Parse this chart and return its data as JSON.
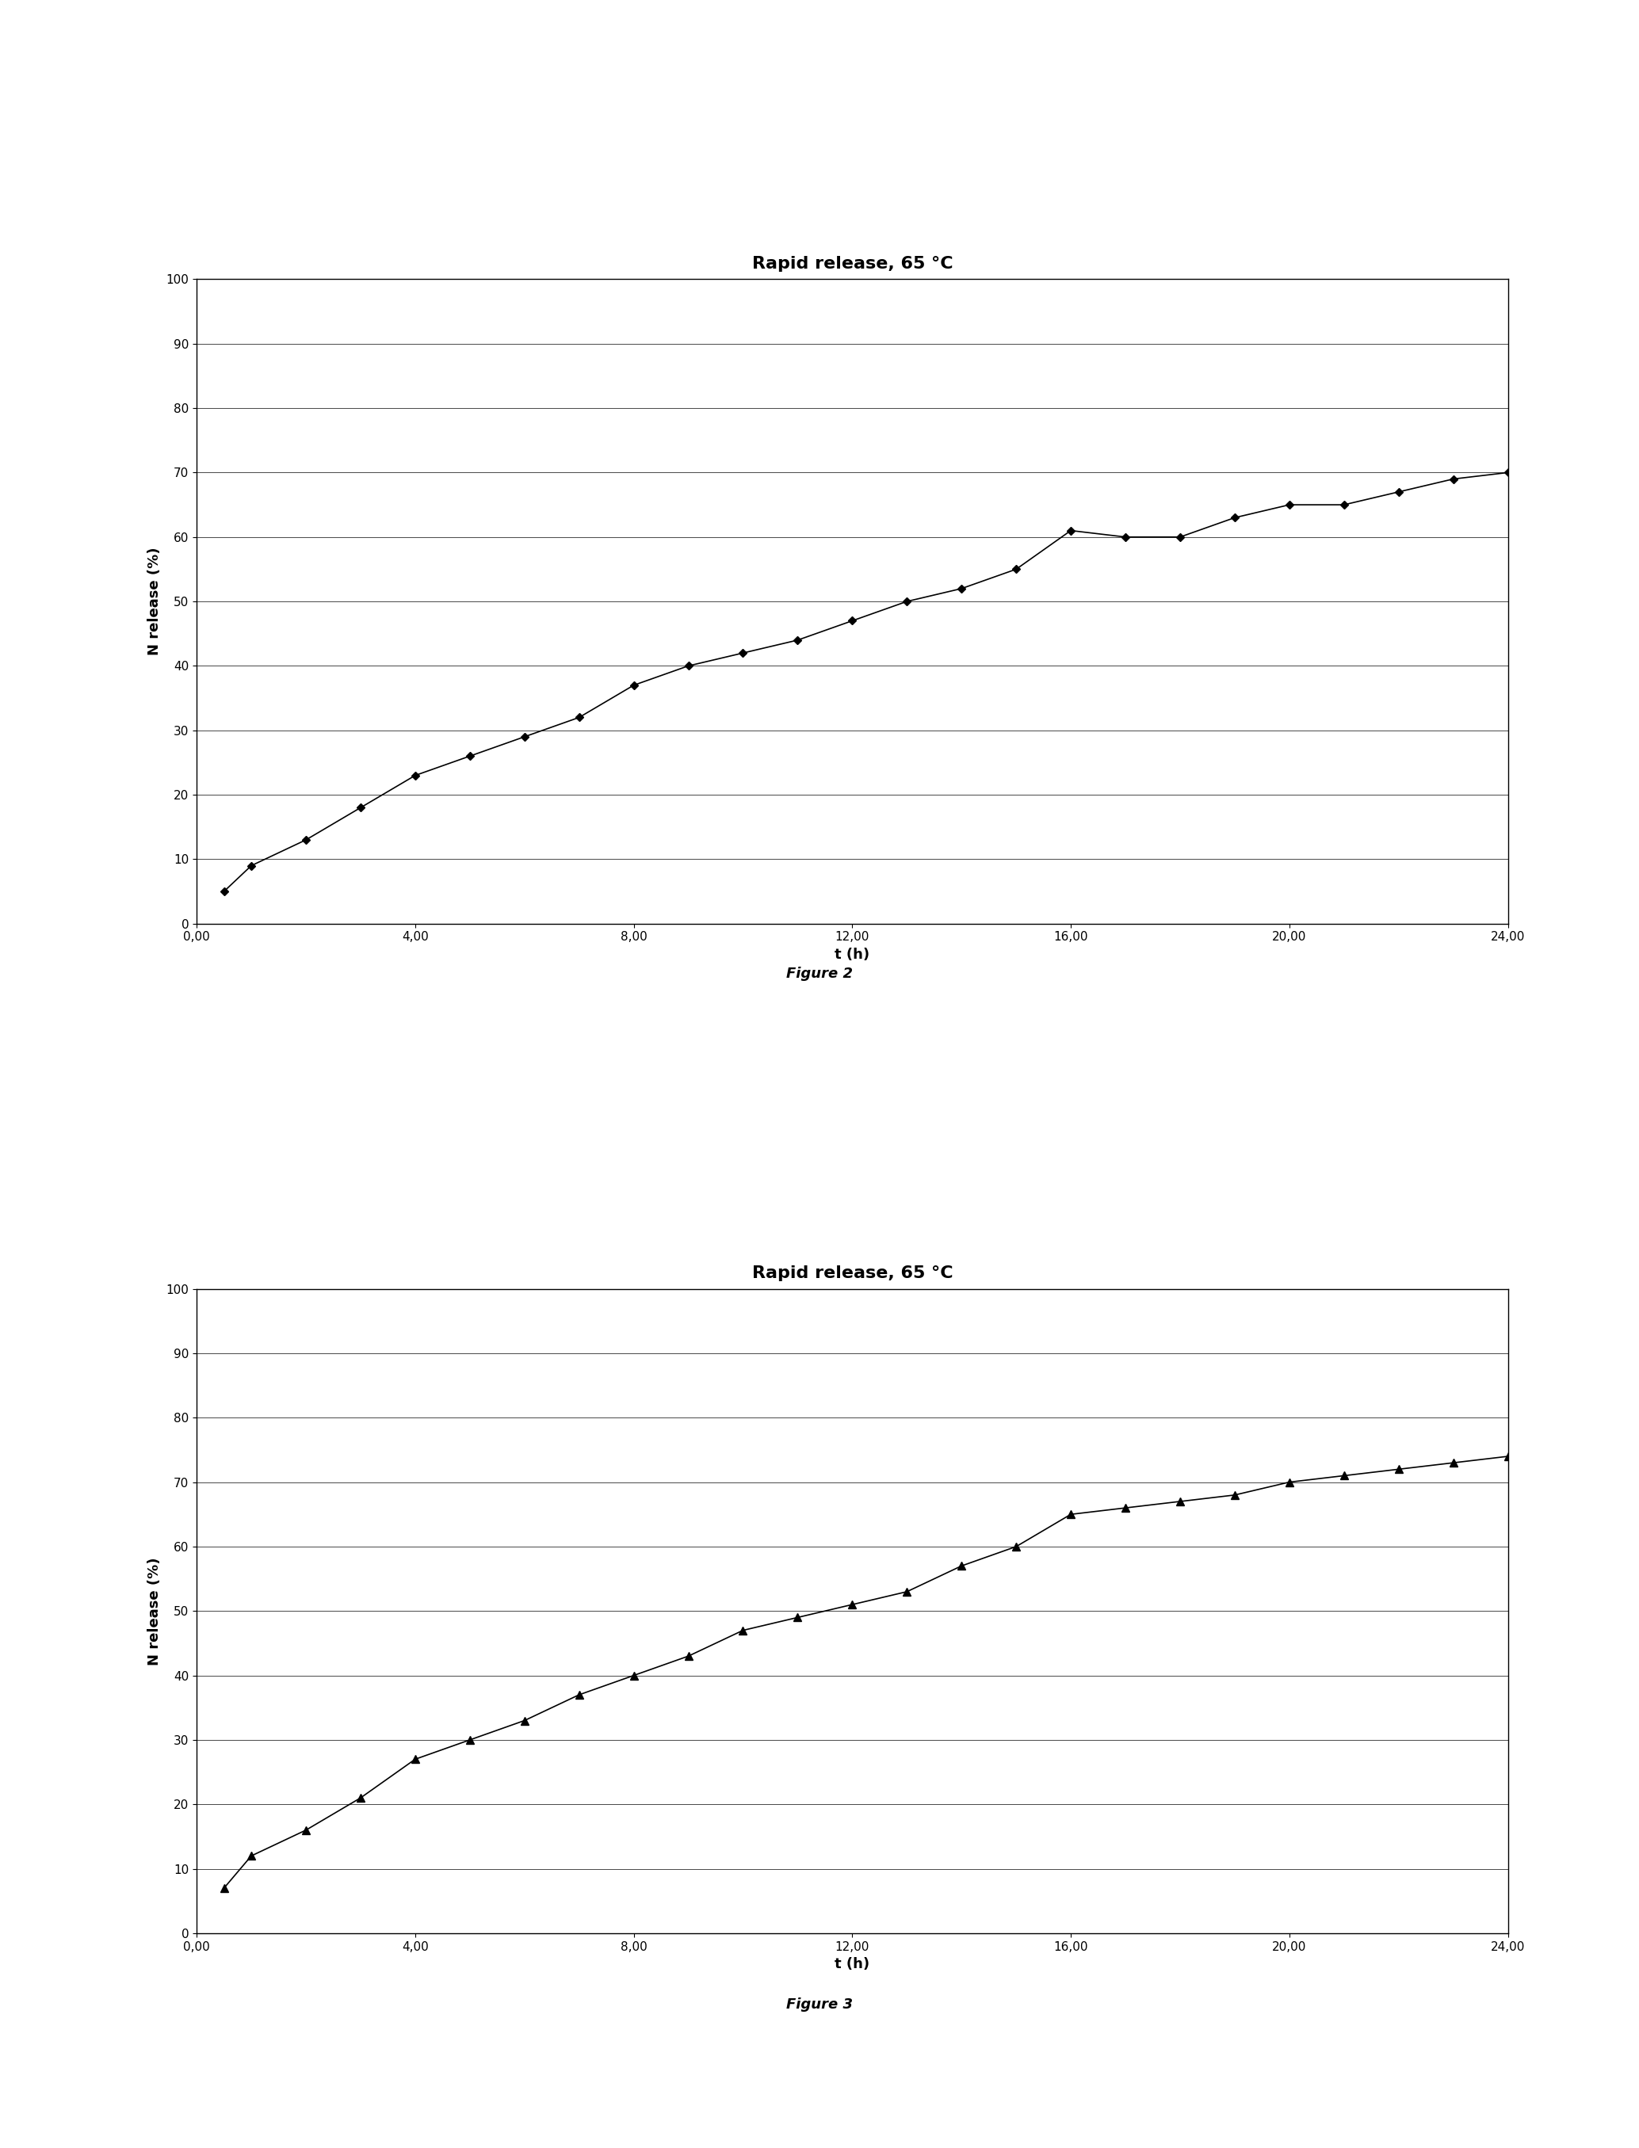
{
  "fig2": {
    "title": "Rapid release, 65 °C",
    "xlabel": "t (h)",
    "ylabel": "N release (%)",
    "x": [
      0.5,
      1,
      2,
      3,
      4,
      5,
      6,
      7,
      8,
      9,
      10,
      11,
      12,
      13,
      14,
      15,
      16,
      17,
      18,
      19,
      20,
      21,
      22,
      23,
      24
    ],
    "y": [
      5,
      9,
      13,
      18,
      23,
      26,
      29,
      32,
      37,
      40,
      42,
      44,
      47,
      50,
      52,
      55,
      61,
      60,
      60,
      63,
      65,
      65,
      67,
      69,
      70
    ],
    "marker": "D",
    "markersize": 5,
    "xlim": [
      0,
      24
    ],
    "ylim": [
      0,
      100
    ],
    "xticks": [
      0,
      4,
      8,
      12,
      16,
      20,
      24
    ],
    "xticklabels": [
      "0,00",
      "4,00",
      "8,00",
      "12,00",
      "16,00",
      "20,00",
      "24,00"
    ],
    "yticks": [
      0,
      10,
      20,
      30,
      40,
      50,
      60,
      70,
      80,
      90,
      100
    ],
    "figure_label": "Figure 2"
  },
  "fig3": {
    "title": "Rapid release, 65 °C",
    "xlabel": "t (h)",
    "ylabel": "N release (%)",
    "x": [
      0.5,
      1,
      2,
      3,
      4,
      5,
      6,
      7,
      8,
      9,
      10,
      11,
      12,
      13,
      14,
      15,
      16,
      17,
      18,
      19,
      20,
      21,
      22,
      23,
      24
    ],
    "y": [
      7,
      12,
      16,
      21,
      27,
      30,
      33,
      37,
      40,
      43,
      47,
      49,
      51,
      53,
      57,
      60,
      65,
      66,
      67,
      68,
      70,
      71,
      72,
      73,
      74
    ],
    "marker": "^",
    "markersize": 7,
    "xlim": [
      0,
      24
    ],
    "ylim": [
      0,
      100
    ],
    "xticks": [
      0,
      4,
      8,
      12,
      16,
      20,
      24
    ],
    "xticklabels": [
      "0,00",
      "4,00",
      "8,00",
      "12,00",
      "16,00",
      "20,00",
      "24,00"
    ],
    "yticks": [
      0,
      10,
      20,
      30,
      40,
      50,
      60,
      70,
      80,
      90,
      100
    ],
    "figure_label": "Figure 3"
  },
  "background_color": "#ffffff",
  "line_color": "#000000",
  "grid_color": "#000000",
  "title_fontsize": 16,
  "label_fontsize": 13,
  "tick_fontsize": 11,
  "fig_label_fontsize": 13
}
